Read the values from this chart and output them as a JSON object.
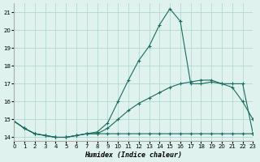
{
  "xlabel": "Humidex (Indice chaleur)",
  "bg_color": "#dff2ee",
  "grid_color": "#a8d5cc",
  "line_color": "#1a6b62",
  "xlim": [
    0,
    23
  ],
  "ylim": [
    13.8,
    21.5
  ],
  "yticks": [
    14,
    15,
    16,
    17,
    18,
    19,
    20,
    21
  ],
  "xticks": [
    0,
    1,
    2,
    3,
    4,
    5,
    6,
    7,
    8,
    9,
    10,
    11,
    12,
    13,
    14,
    15,
    16,
    17,
    18,
    19,
    20,
    21,
    22,
    23
  ],
  "curve1_x": [
    0,
    1,
    2,
    3,
    4,
    5,
    6,
    7,
    8,
    9,
    10,
    11,
    12,
    13,
    14,
    15,
    16,
    17,
    18,
    19,
    20,
    21,
    22,
    23
  ],
  "curve1_y": [
    14.9,
    14.5,
    14.2,
    14.1,
    14.0,
    14.0,
    14.1,
    14.2,
    14.3,
    14.8,
    16.0,
    17.2,
    18.3,
    19.1,
    20.3,
    21.2,
    20.5,
    17.0,
    17.0,
    17.1,
    17.0,
    16.8,
    16.0,
    15.0
  ],
  "curve2_x": [
    0,
    1,
    2,
    3,
    4,
    5,
    6,
    7,
    8,
    9,
    10,
    11,
    12,
    13,
    14,
    15,
    16,
    17,
    18,
    19,
    20,
    21,
    22,
    23
  ],
  "curve2_y": [
    14.9,
    14.5,
    14.2,
    14.1,
    14.0,
    14.0,
    14.1,
    14.2,
    14.2,
    14.2,
    14.2,
    14.2,
    14.2,
    14.2,
    14.2,
    14.2,
    14.2,
    14.2,
    14.2,
    14.2,
    14.2,
    14.2,
    14.2,
    14.2
  ],
  "curve3_x": [
    0,
    1,
    2,
    3,
    4,
    5,
    6,
    7,
    8,
    9,
    10,
    11,
    12,
    13,
    14,
    15,
    16,
    17,
    18,
    19,
    20,
    21,
    22,
    23
  ],
  "curve3_y": [
    14.9,
    14.5,
    14.2,
    14.1,
    14.0,
    14.0,
    14.1,
    14.2,
    14.2,
    14.5,
    15.0,
    15.5,
    15.9,
    16.2,
    16.5,
    16.8,
    17.0,
    17.1,
    17.2,
    17.2,
    17.0,
    17.0,
    17.0,
    14.2
  ]
}
